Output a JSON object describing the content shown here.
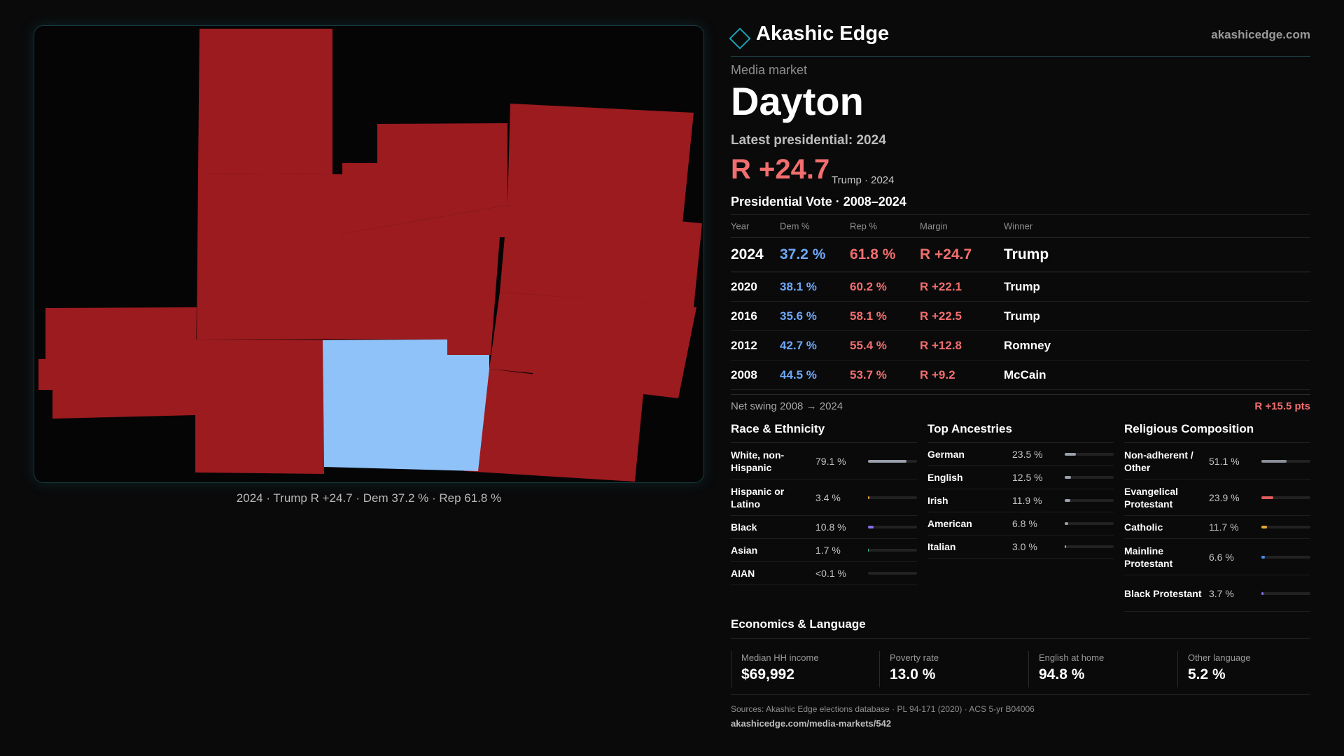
{
  "map": {
    "caption": "2024 · Trump R +24.7 · Dem 37.2 % · Rep 61.8 %",
    "colors": {
      "rep": "#9b1b1f",
      "dem": "#8fc2f9"
    }
  },
  "brand": {
    "name": "Akashic Edge",
    "url": "akashicedge.com",
    "icon": "diamond-icon"
  },
  "market": {
    "kicker": "Media market",
    "name": "Dayton",
    "latest_label": "Latest presidential: 2024",
    "margin": "R +24.7",
    "margin_sub": "Trump · 2024"
  },
  "vote": {
    "title": "Presidential Vote · 2008–2024",
    "headers": {
      "year": "Year",
      "dem": "Dem %",
      "rep": "Rep %",
      "margin": "Margin",
      "winner": "Winner"
    },
    "rows": [
      {
        "year": "2024",
        "dem": "37.2 %",
        "rep": "61.8 %",
        "margin": "R +24.7",
        "winner": "Trump"
      },
      {
        "year": "2020",
        "dem": "38.1 %",
        "rep": "60.2 %",
        "margin": "R +22.1",
        "winner": "Trump"
      },
      {
        "year": "2016",
        "dem": "35.6 %",
        "rep": "58.1 %",
        "margin": "R +22.5",
        "winner": "Trump"
      },
      {
        "year": "2012",
        "dem": "42.7 %",
        "rep": "55.4 %",
        "margin": "R +12.8",
        "winner": "Romney"
      },
      {
        "year": "2008",
        "dem": "44.5 %",
        "rep": "53.7 %",
        "margin": "R +9.2",
        "winner": "McCain"
      }
    ],
    "swing_label": "Net swing 2008 → 2024",
    "swing_value": "R +15.5 pts"
  },
  "race": {
    "title": "Race & Ethnicity",
    "items": [
      {
        "label": "White, non-Hispanic",
        "value": "79.1 %",
        "share": 0.791,
        "color": "#9aa0aa"
      },
      {
        "label": "Hispanic or Latino",
        "value": "3.4 %",
        "share": 0.034,
        "color": "#e8a13a"
      },
      {
        "label": "Black",
        "value": "10.8 %",
        "share": 0.108,
        "color": "#8a6ee6"
      },
      {
        "label": "Asian",
        "value": "1.7 %",
        "share": 0.017,
        "color": "#3ec4a4"
      },
      {
        "label": "AIAN",
        "value": "<0.1 %",
        "share": 0.0,
        "color": "#c06060"
      }
    ]
  },
  "ancestry": {
    "title": "Top Ancestries",
    "items": [
      {
        "label": "German",
        "value": "23.5 %",
        "share": 0.235,
        "color": "#9aa0aa"
      },
      {
        "label": "English",
        "value": "12.5 %",
        "share": 0.125,
        "color": "#9aa0aa"
      },
      {
        "label": "Irish",
        "value": "11.9 %",
        "share": 0.119,
        "color": "#9aa0aa"
      },
      {
        "label": "American",
        "value": "6.8 %",
        "share": 0.068,
        "color": "#9aa0aa"
      },
      {
        "label": "Italian",
        "value": "3.0 %",
        "share": 0.03,
        "color": "#9aa0aa"
      }
    ]
  },
  "religion": {
    "title": "Religious Composition",
    "items": [
      {
        "label": "Non-adherent / Other",
        "value": "51.1 %",
        "share": 0.511,
        "color": "#8a8f98"
      },
      {
        "label": "Evangelical Protestant",
        "value": "23.9 %",
        "share": 0.239,
        "color": "#e05b5b"
      },
      {
        "label": "Catholic",
        "value": "11.7 %",
        "share": 0.117,
        "color": "#e0a830"
      },
      {
        "label": "Mainline Protestant",
        "value": "6.6 %",
        "share": 0.066,
        "color": "#4a8ee8"
      },
      {
        "label": "Black Protestant",
        "value": "3.7 %",
        "share": 0.037,
        "color": "#8a6ee6"
      }
    ]
  },
  "economics": {
    "title": "Economics & Language",
    "cells": [
      {
        "label": "Median HH income",
        "value": "$69,992"
      },
      {
        "label": "Poverty rate",
        "value": "13.0 %"
      },
      {
        "label": "English at home",
        "value": "94.8 %"
      },
      {
        "label": "Other language",
        "value": "5.2 %"
      }
    ]
  },
  "sources": {
    "line1": "Sources: Akashic Edge elections database · PL 94-171 (2020) · ACS 5-yr B04006",
    "line2": "akashicedge.com/media-markets/542"
  }
}
